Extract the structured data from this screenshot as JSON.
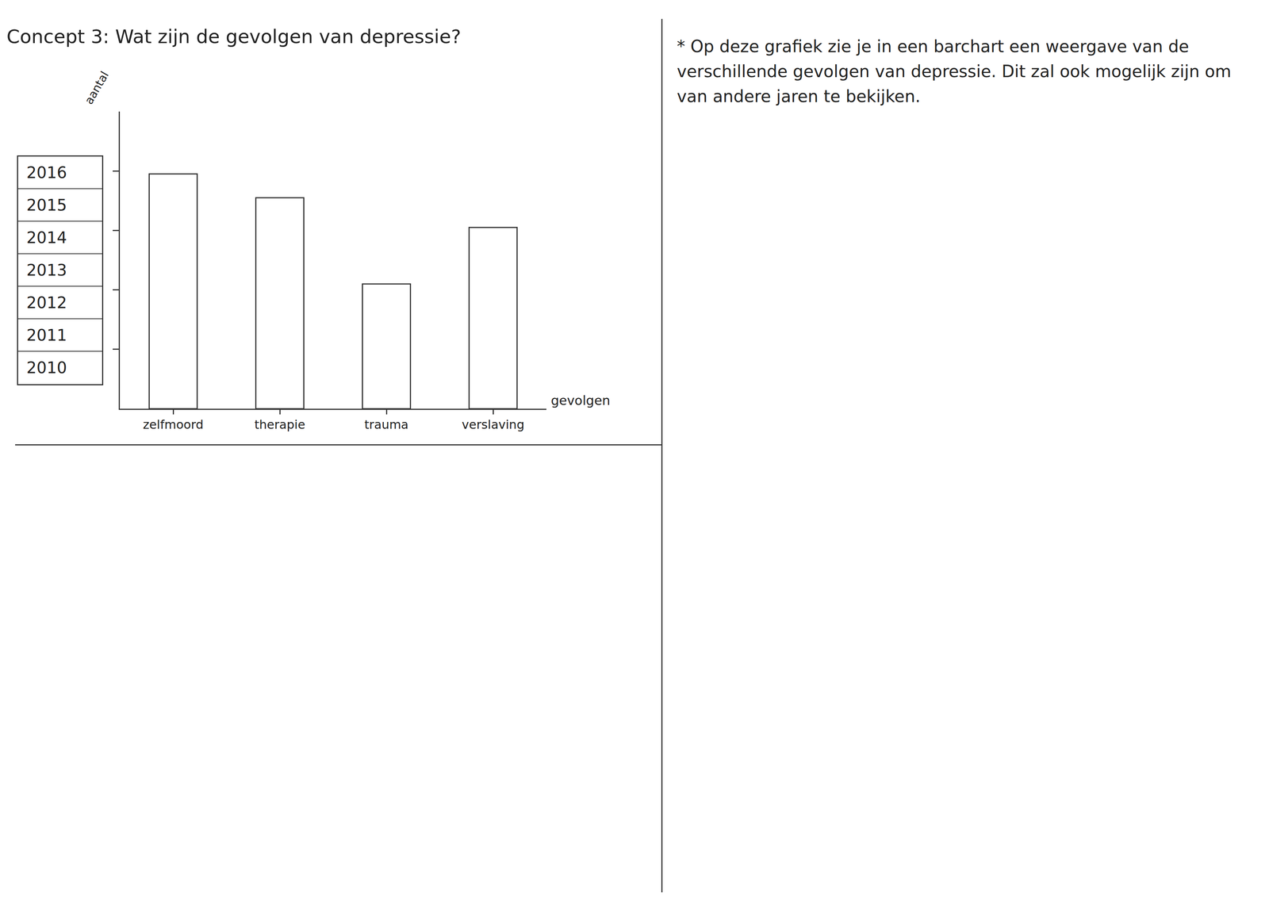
{
  "chart_data": {
    "type": "bar",
    "title": "Concept 3: Wat zijn de gevolgen van depressie?",
    "x_label": "gevolgen",
    "y_label": "aantal",
    "categories": [
      "zelfmoord",
      "therapie",
      "trauma",
      "verslaving"
    ],
    "values": [
      3.95,
      3.55,
      2.1,
      3.05
    ],
    "color": "#ffffff",
    "ylim": [
      0,
      5
    ],
    "yticks": [
      1,
      2,
      3,
      4
    ],
    "grid": false,
    "tick_labels": "x",
    "data_labels": false
  },
  "year_selector": [
    "2016",
    "2015",
    "2014",
    "2013",
    "2012",
    "2011",
    "2010"
  ],
  "description": "* Op deze grafiek zie je in een barchart een weergave van de verschillende gevolgen van depressie. Dit zal ook mogelijk zijn om van andere jaren te bekijken."
}
